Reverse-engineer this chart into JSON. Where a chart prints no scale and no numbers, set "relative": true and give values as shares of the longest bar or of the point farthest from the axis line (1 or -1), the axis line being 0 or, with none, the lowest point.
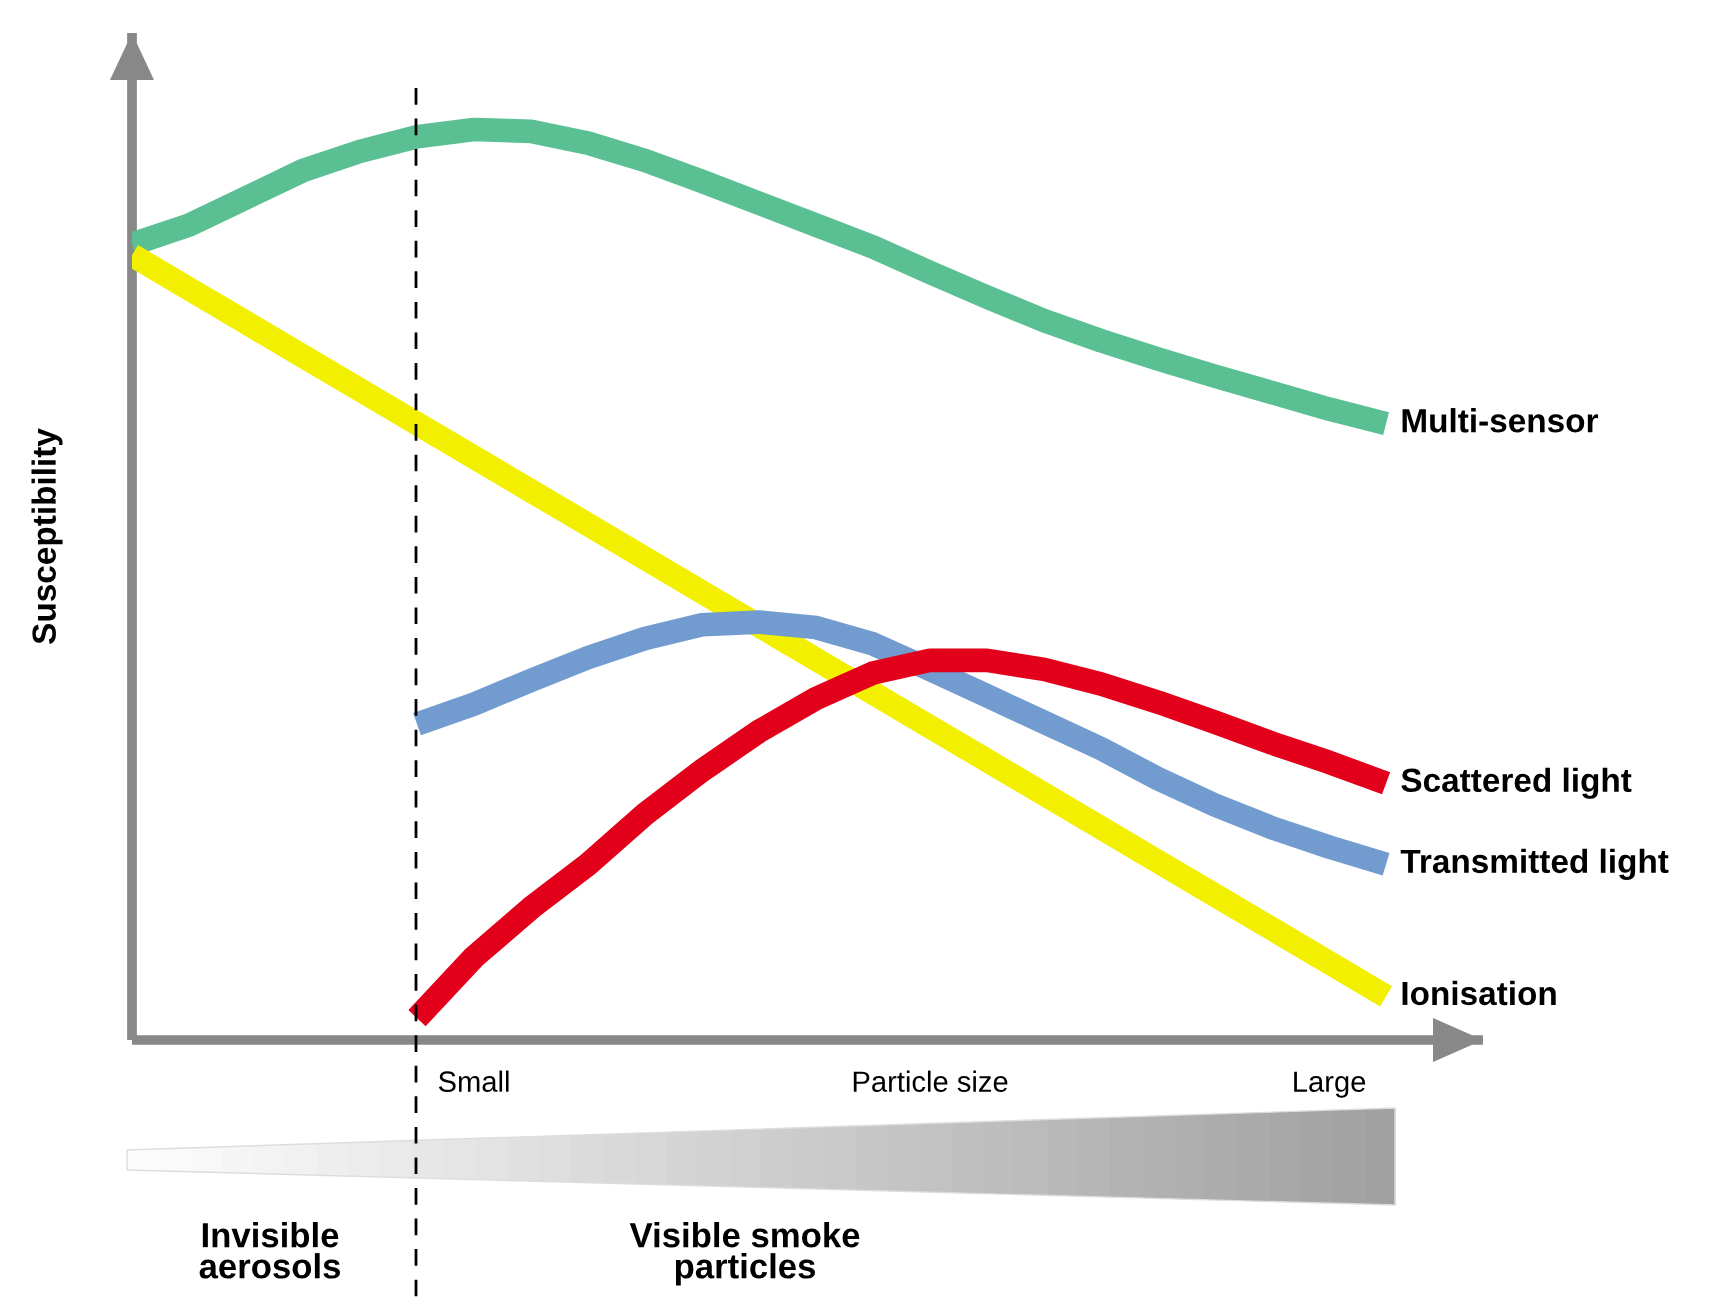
{
  "chart_data": {
    "type": "line",
    "relative": true,
    "ylabel": "Susceptibility",
    "legend": false,
    "grid": false,
    "marker": "none",
    "line_style": "solid",
    "categories": [
      null,
      null,
      null,
      null,
      null,
      null,
      "Small",
      null,
      null,
      null,
      null,
      null,
      null,
      null,
      "Particle size",
      null,
      null,
      null,
      null,
      null,
      null,
      "Large",
      null
    ],
    "series": [
      {
        "name": "Multi-sensor",
        "color": "#5bbf94",
        "values": [
          0.874,
          0.895,
          0.925,
          0.955,
          0.976,
          0.992,
          1,
          0.998,
          0.985,
          0.966,
          0.943,
          0.919,
          0.895,
          0.871,
          0.843,
          0.816,
          0.79,
          0.768,
          0.748,
          0.729,
          0.711,
          0.693,
          0.677
        ]
      },
      {
        "name": "Ionisation",
        "color": "#f2ef00",
        "values": [
          0.862,
          0.825,
          0.788,
          0.751,
          0.714,
          0.677,
          0.64,
          0.603,
          0.566,
          0.529,
          0.492,
          0.455,
          0.418,
          0.381,
          0.344,
          0.307,
          0.27,
          0.233,
          0.196,
          0.159,
          0.122,
          0.085,
          0.048
        ]
      },
      {
        "name": "Transmitted light",
        "color": "#729ccf",
        "values": [
          null,
          null,
          null,
          null,
          null,
          0.347,
          0.369,
          0.395,
          0.42,
          0.441,
          0.456,
          0.459,
          0.453,
          0.435,
          0.407,
          0.378,
          0.349,
          0.32,
          0.287,
          0.258,
          0.233,
          0.212,
          0.193
        ]
      },
      {
        "name": "Scattered light",
        "color": "#e2001a",
        "values": [
          null,
          null,
          null,
          null,
          null,
          0.024,
          0.091,
          0.145,
          0.193,
          0.248,
          0.296,
          0.339,
          0.375,
          0.403,
          0.417,
          0.417,
          0.407,
          0.391,
          0.371,
          0.349,
          0.326,
          0.305,
          0.282
        ]
      }
    ],
    "annotations": [
      "Invisible\naerosols",
      "Visible smoke\nparticles"
    ]
  }
}
